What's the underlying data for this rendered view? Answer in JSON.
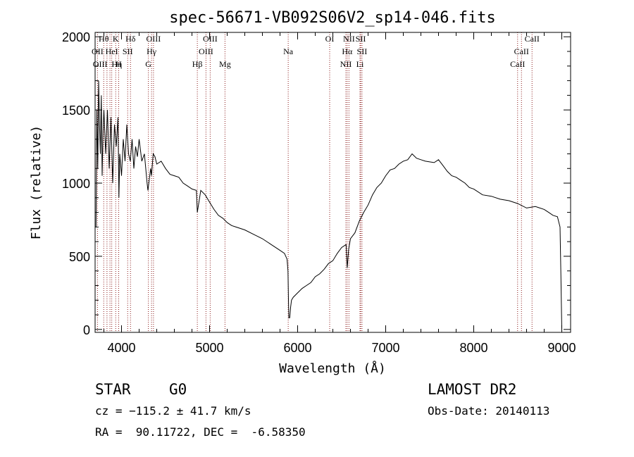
{
  "chart_data": {
    "type": "line",
    "title": "spec-56671-VB092S06V2_sp14-046.fits",
    "xlabel": "Wavelength (Å)",
    "ylabel": "Flux (relative)",
    "xlim": [
      3700,
      9100
    ],
    "ylim": [
      -20,
      2030
    ],
    "x_ticks": [
      4000,
      5000,
      6000,
      7000,
      8000,
      9000
    ],
    "y_ticks": [
      0,
      500,
      1000,
      1500,
      2000
    ],
    "x_ticks_minor_step": 200,
    "y_ticks_minor_step": 100,
    "grid": false,
    "line_color": "#000000",
    "marker_color": "#8b1a1a",
    "series": [
      {
        "x": [
          3710,
          3720,
          3730,
          3740,
          3750,
          3760,
          3770,
          3780,
          3790,
          3800,
          3820,
          3840,
          3860,
          3880,
          3900,
          3920,
          3940,
          3960,
          3970,
          3980,
          4000,
          4020,
          4040,
          4060,
          4080,
          4100,
          4120,
          4140,
          4160,
          4180,
          4200,
          4230,
          4260,
          4290,
          4300,
          4330,
          4340,
          4360,
          4380,
          4400,
          4450,
          4500,
          4550,
          4600,
          4650,
          4700,
          4750,
          4800,
          4850,
          4861,
          4900,
          4950,
          5000,
          5050,
          5100,
          5150,
          5200,
          5250,
          5300,
          5400,
          5500,
          5600,
          5700,
          5800,
          5850,
          5880,
          5890,
          5895,
          5900,
          5910,
          5920,
          5930,
          5950,
          6000,
          6050,
          6100,
          6150,
          6200,
          6250,
          6300,
          6350,
          6400,
          6450,
          6500,
          6550,
          6563,
          6580,
          6600,
          6650,
          6700,
          6750,
          6800,
          6850,
          6900,
          6950,
          7000,
          7050,
          7100,
          7150,
          7200,
          7250,
          7300,
          7350,
          7400,
          7450,
          7500,
          7550,
          7600,
          7650,
          7700,
          7750,
          7800,
          7850,
          7900,
          7950,
          8000,
          8100,
          8200,
          8300,
          8400,
          8500,
          8600,
          8700,
          8800,
          8850,
          8900,
          8950,
          8980,
          8990,
          9000
        ],
        "y": [
          700,
          1500,
          1100,
          1700,
          1400,
          1200,
          1600,
          1050,
          1350,
          1500,
          1200,
          1500,
          1100,
          1450,
          1000,
          1400,
          1250,
          1450,
          900,
          1200,
          1050,
          1300,
          1150,
          1400,
          1200,
          1150,
          1300,
          1100,
          1250,
          1180,
          1300,
          1150,
          1200,
          1000,
          950,
          1100,
          1050,
          1200,
          1180,
          1130,
          1150,
          1100,
          1060,
          1050,
          1040,
          1000,
          980,
          960,
          950,
          800,
          950,
          920,
          870,
          820,
          780,
          760,
          730,
          710,
          700,
          680,
          650,
          620,
          580,
          540,
          520,
          480,
          400,
          230,
          80,
          80,
          150,
          200,
          220,
          250,
          280,
          300,
          320,
          360,
          380,
          410,
          450,
          470,
          520,
          560,
          580,
          420,
          550,
          620,
          660,
          740,
          800,
          850,
          920,
          970,
          1000,
          1050,
          1090,
          1100,
          1130,
          1150,
          1160,
          1200,
          1170,
          1160,
          1150,
          1145,
          1140,
          1160,
          1120,
          1080,
          1050,
          1040,
          1020,
          1000,
          970,
          960,
          920,
          910,
          890,
          880,
          860,
          830,
          840,
          820,
          800,
          780,
          770,
          700,
          350,
          0
        ]
      }
    ],
    "line_markers": [
      {
        "label": "Hθ",
        "x": 3798,
        "row": 0,
        "dx": 0
      },
      {
        "label": "OII",
        "x": 3727,
        "row": 1,
        "dx": 0
      },
      {
        "label": "OIII",
        "x": 3869,
        "row": 2,
        "dx": -14
      },
      {
        "label": "K",
        "x": 3934,
        "row": 0,
        "dx": 0
      },
      {
        "label": "HeI",
        "x": 3889,
        "row": 1,
        "dx": 0
      },
      {
        "label": "Hη",
        "x": 3835,
        "row": 2,
        "dx": 14
      },
      {
        "label": "H",
        "x": 3968,
        "row": 2,
        "dx": 0
      },
      {
        "label": "SII",
        "x": 4070,
        "row": 1,
        "dx": 0
      },
      {
        "label": "Hδ",
        "x": 4102,
        "row": 0,
        "dx": 0
      },
      {
        "label": "OIII",
        "x": 4363,
        "row": 0,
        "dx": 0
      },
      {
        "label": "Hγ",
        "x": 4341,
        "row": 1,
        "dx": 0
      },
      {
        "label": "G",
        "x": 4305,
        "row": 2,
        "dx": 0
      },
      {
        "label": "Hβ",
        "x": 4861,
        "row": 2,
        "dx": 0
      },
      {
        "label": "OIII",
        "x": 5007,
        "row": 0,
        "dx": 0
      },
      {
        "label": "OIII",
        "x": 4959,
        "row": 1,
        "dx": 0
      },
      {
        "label": "Mg",
        "x": 5175,
        "row": 2,
        "dx": 0
      },
      {
        "label": "Na",
        "x": 5893,
        "row": 1,
        "dx": 0
      },
      {
        "label": "OI",
        "x": 6364,
        "row": 0,
        "dx": 0
      },
      {
        "label": "NII",
        "x": 6583,
        "row": 0,
        "dx": 0
      },
      {
        "label": "SII",
        "x": 6716,
        "row": 0,
        "dx": 0
      },
      {
        "label": "Hα",
        "x": 6563,
        "row": 1,
        "dx": 0
      },
      {
        "label": "SII",
        "x": 6731,
        "row": 1,
        "dx": 0
      },
      {
        "label": "NII",
        "x": 6548,
        "row": 2,
        "dx": 0
      },
      {
        "label": "Li",
        "x": 6708,
        "row": 2,
        "dx": 0
      },
      {
        "label": "CaII",
        "x": 8662,
        "row": 0,
        "dx": 0
      },
      {
        "label": "CaII",
        "x": 8542,
        "row": 1,
        "dx": 0
      },
      {
        "label": "CaII",
        "x": 8498,
        "row": 2,
        "dx": 0
      }
    ]
  },
  "footer": {
    "object_class": "STAR",
    "subclass": "G0",
    "survey": "LAMOST DR2",
    "redshift": "cz = −115.2 ± 41.7 km/s",
    "obs_date": "Obs-Date: 20140113",
    "coords": "RA =  90.11722, DEC =  -6.58350"
  }
}
